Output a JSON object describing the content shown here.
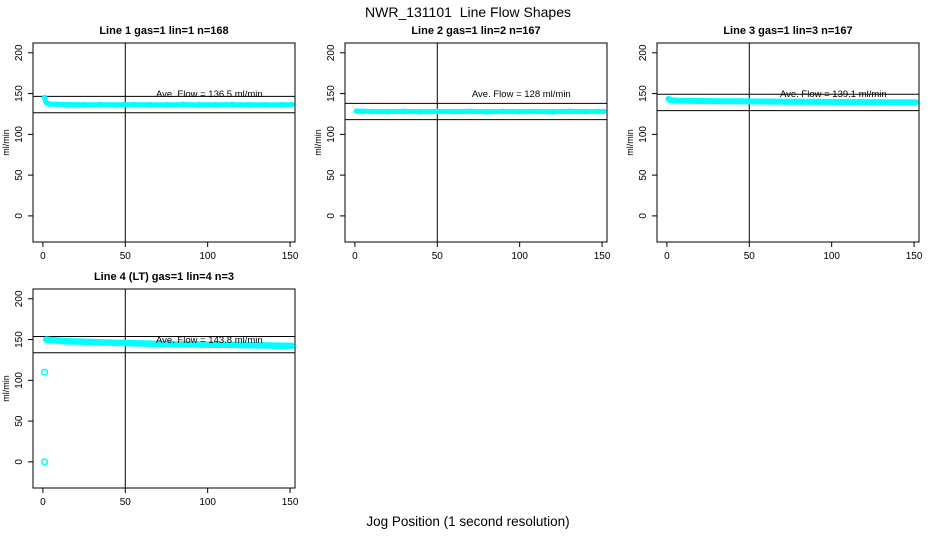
{
  "page": {
    "title": "NWR_131101  Line Flow Shapes",
    "xlabel": "Jog Position (1 second resolution)",
    "background": "#ffffff",
    "accent_color": "#00ffff"
  },
  "chart_data": [
    {
      "id": "line-1",
      "type": "scatter",
      "title": "Line 1 gas=1 lin=1 n=168",
      "ylabel": "ml/min",
      "ave_flow": 136.5,
      "ave_flow_label": "Ave. Flow =  136.5  ml/min",
      "xlim": [
        -6,
        153
      ],
      "ylim": [
        -32,
        212
      ],
      "xticks": [
        0,
        50,
        100,
        150
      ],
      "yticks": [
        0,
        50,
        100,
        150,
        200
      ],
      "vline_x": 50,
      "hlines": [
        146.5,
        126.5
      ],
      "point_color": "#00ffff",
      "band_width": 5,
      "band_points": [
        [
          1,
          145
        ],
        [
          2,
          139
        ],
        [
          4,
          137.2
        ],
        [
          8,
          136.8
        ],
        [
          15,
          136.6
        ],
        [
          25,
          136.4
        ],
        [
          35,
          136.5
        ],
        [
          45,
          136.3
        ],
        [
          55,
          136.5
        ],
        [
          65,
          136.4
        ],
        [
          75,
          136.3
        ],
        [
          85,
          136.5
        ],
        [
          95,
          136.4
        ],
        [
          105,
          136.3
        ],
        [
          115,
          136.5
        ],
        [
          125,
          136.4
        ],
        [
          135,
          136.3
        ],
        [
          145,
          136.4
        ],
        [
          151,
          136.4
        ]
      ],
      "outlier_points": []
    },
    {
      "id": "line-2",
      "type": "scatter",
      "title": "Line 2 gas=1 lin=2 n=167",
      "ylabel": "ml/min",
      "ave_flow": 128,
      "ave_flow_label": "Ave. Flow =  128  ml/min",
      "xlim": [
        -6,
        153
      ],
      "ylim": [
        -32,
        212
      ],
      "xticks": [
        0,
        50,
        100,
        150
      ],
      "yticks": [
        0,
        50,
        100,
        150,
        200
      ],
      "vline_x": 50,
      "hlines": [
        138,
        118
      ],
      "point_color": "#00ffff",
      "band_width": 5,
      "band_points": [
        [
          1,
          128.5
        ],
        [
          5,
          128.2
        ],
        [
          10,
          128
        ],
        [
          20,
          127.9
        ],
        [
          30,
          128.1
        ],
        [
          40,
          127.8
        ],
        [
          50,
          128
        ],
        [
          60,
          127.9
        ],
        [
          70,
          128.1
        ],
        [
          80,
          127.8
        ],
        [
          90,
          128
        ],
        [
          100,
          127.9
        ],
        [
          110,
          128
        ],
        [
          120,
          127.8
        ],
        [
          130,
          128.1
        ],
        [
          140,
          127.9
        ],
        [
          148,
          128
        ],
        [
          151,
          128
        ]
      ],
      "outlier_points": []
    },
    {
      "id": "line-3",
      "type": "scatter",
      "title": "Line 3 gas=1 lin=3 n=167",
      "ylabel": "ml/min",
      "ave_flow": 139.1,
      "ave_flow_label": "Ave. Flow =  139.1  ml/min",
      "xlim": [
        -6,
        153
      ],
      "ylim": [
        -32,
        212
      ],
      "xticks": [
        0,
        50,
        100,
        150
      ],
      "yticks": [
        0,
        50,
        100,
        150,
        200
      ],
      "vline_x": 50,
      "hlines": [
        149.1,
        129.1
      ],
      "point_color": "#00ffff",
      "band_width": 6,
      "band_points": [
        [
          1,
          143.5
        ],
        [
          2,
          142
        ],
        [
          4,
          141.5
        ],
        [
          8,
          141.2
        ],
        [
          15,
          141
        ],
        [
          25,
          140.8
        ],
        [
          35,
          140.6
        ],
        [
          45,
          140.5
        ],
        [
          55,
          140.3
        ],
        [
          65,
          140.2
        ],
        [
          75,
          140
        ],
        [
          85,
          139.9
        ],
        [
          95,
          139.8
        ],
        [
          105,
          139.7
        ],
        [
          115,
          139.6
        ],
        [
          125,
          139.5
        ],
        [
          135,
          139.4
        ],
        [
          145,
          139.3
        ],
        [
          151,
          139.3
        ]
      ],
      "outlier_points": []
    },
    {
      "id": "line-4-lt",
      "type": "scatter",
      "title": "Line 4 (LT) gas=1 lin=4 n=3",
      "ylabel": "ml/min",
      "ave_flow": 143.8,
      "ave_flow_label": "Ave. Flow =  143.8  ml/min",
      "xlim": [
        -6,
        153
      ],
      "ylim": [
        -32,
        212
      ],
      "xticks": [
        0,
        50,
        100,
        150
      ],
      "yticks": [
        0,
        50,
        100,
        150,
        200
      ],
      "vline_x": 50,
      "hlines": [
        153.8,
        133.8
      ],
      "point_color": "#00ffff",
      "band_width": 6.5,
      "band_points": [
        [
          2,
          150
        ],
        [
          4,
          149.5
        ],
        [
          8,
          148.8
        ],
        [
          15,
          148
        ],
        [
          25,
          147.2
        ],
        [
          35,
          146.5
        ],
        [
          45,
          146
        ],
        [
          55,
          145.5
        ],
        [
          65,
          145
        ],
        [
          75,
          144.6
        ],
        [
          85,
          144.3
        ],
        [
          95,
          144
        ],
        [
          105,
          143.7
        ],
        [
          115,
          143.4
        ],
        [
          125,
          143.1
        ],
        [
          135,
          142.8
        ],
        [
          145,
          142.4
        ],
        [
          151,
          142.2
        ]
      ],
      "outlier_points": [
        [
          1,
          110
        ],
        [
          1,
          0
        ]
      ]
    }
  ]
}
